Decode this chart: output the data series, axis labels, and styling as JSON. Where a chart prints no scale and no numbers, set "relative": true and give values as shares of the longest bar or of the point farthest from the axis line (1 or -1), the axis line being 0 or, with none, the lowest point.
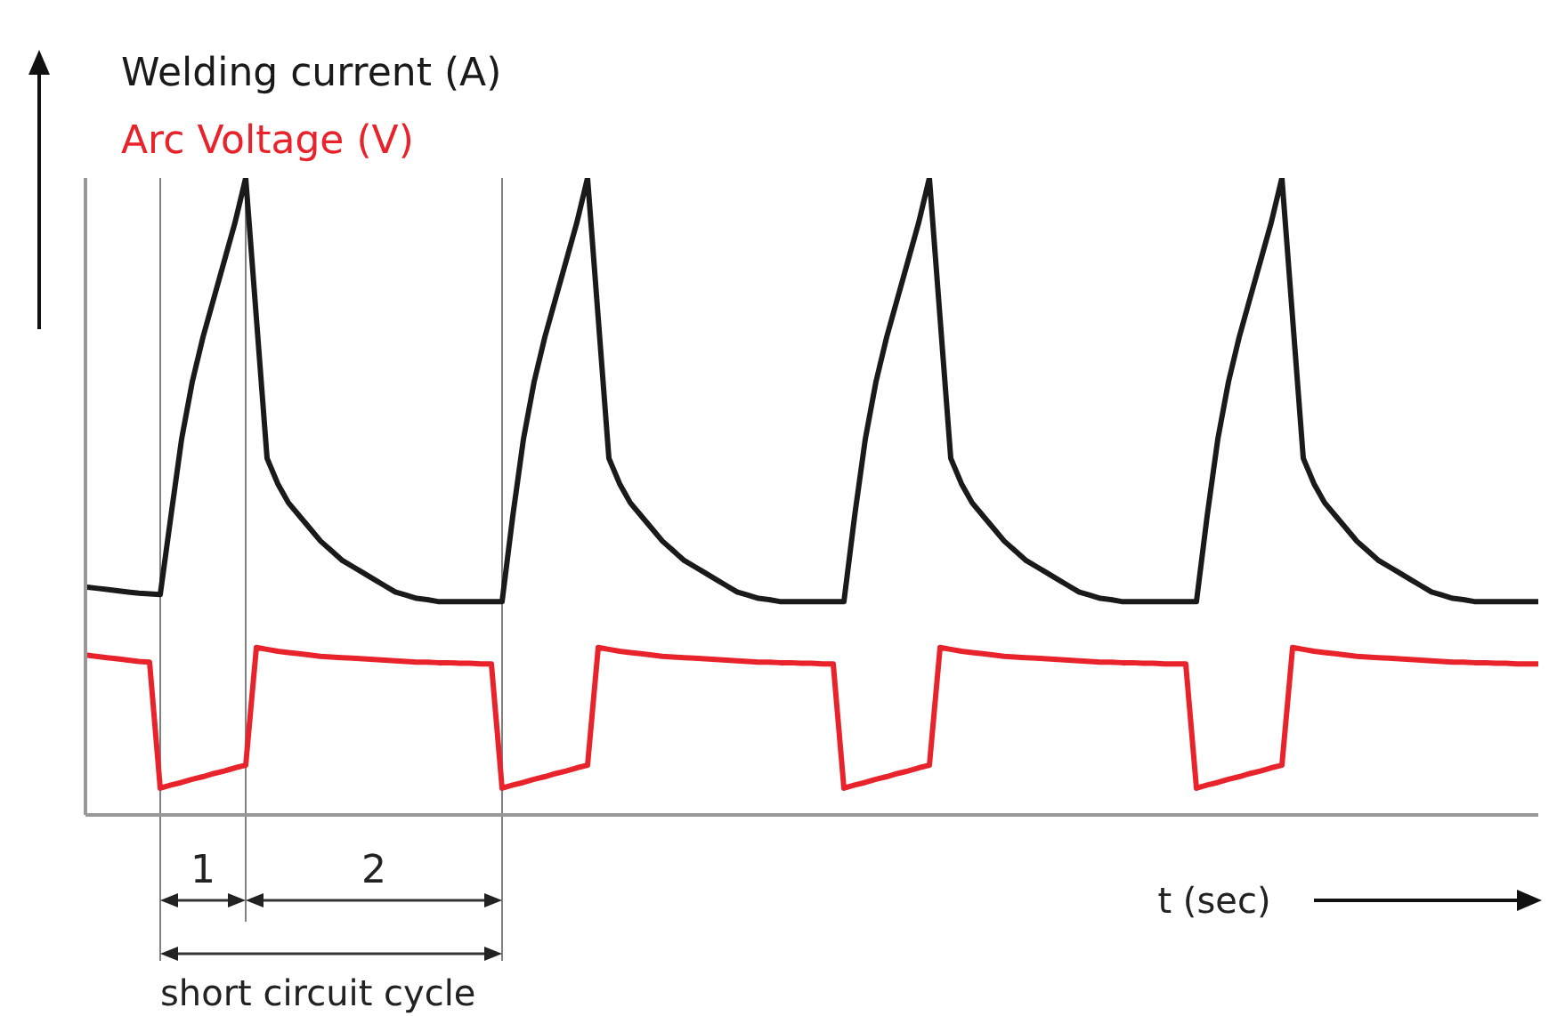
{
  "chart_data": {
    "type": "line",
    "relative": true,
    "xlabel": "t (sec)",
    "legend": "top left",
    "marker": "none",
    "line_style": "solid",
    "categories": [
      null,
      null,
      null,
      null,
      null,
      null,
      null,
      null,
      null,
      null,
      null,
      null,
      null,
      null,
      null,
      null,
      null,
      null,
      null,
      null,
      null,
      null,
      null,
      null,
      null,
      null,
      null,
      null,
      null,
      null,
      null,
      null,
      null,
      null,
      null,
      null,
      null,
      null,
      null,
      null,
      null,
      null,
      null,
      null,
      null,
      null,
      null,
      null,
      null,
      null,
      null,
      null,
      null,
      null,
      null,
      null,
      null,
      null,
      null,
      null,
      null,
      null,
      null,
      null,
      null,
      null,
      null,
      null,
      null,
      null,
      null,
      null,
      null,
      null,
      null,
      null,
      null,
      null,
      null,
      null,
      null,
      null,
      null,
      null,
      null,
      null,
      null,
      null,
      null,
      null,
      null,
      null,
      null,
      null,
      null,
      null,
      null,
      null,
      null,
      null,
      null,
      null,
      null,
      null,
      null,
      null,
      null,
      null,
      null,
      null,
      null,
      null,
      null,
      null,
      null,
      null,
      null,
      null,
      null,
      null,
      null,
      null,
      null,
      null,
      null,
      null,
      null,
      null,
      null,
      null,
      null,
      null,
      null,
      null,
      null,
      null,
      null
    ],
    "series": [
      {
        "name": "Welding current   (A)",
        "color": "#1a1a1a",
        "values": [
          0.358,
          0.356,
          0.354,
          0.352,
          0.35,
          0.348,
          0.347,
          0.346,
          0.469,
          0.59,
          0.68,
          0.75,
          0.81,
          0.87,
          0.93,
          1,
          0.78,
          0.56,
          0.52,
          0.49,
          0.47,
          0.45,
          0.43,
          0.415,
          0.4,
          0.39,
          0.38,
          0.37,
          0.36,
          0.35,
          0.345,
          0.34,
          0.338,
          0.335,
          0.335,
          0.335,
          0.335,
          0.335,
          0.335,
          0.335,
          0.469,
          0.59,
          0.68,
          0.75,
          0.81,
          0.87,
          0.93,
          1,
          0.78,
          0.56,
          0.52,
          0.49,
          0.47,
          0.45,
          0.43,
          0.415,
          0.4,
          0.39,
          0.38,
          0.37,
          0.36,
          0.35,
          0.345,
          0.34,
          0.338,
          0.335,
          0.335,
          0.335,
          0.335,
          0.335,
          0.335,
          0.335,
          0.469,
          0.59,
          0.68,
          0.75,
          0.81,
          0.87,
          0.93,
          1,
          0.78,
          0.56,
          0.52,
          0.49,
          0.47,
          0.45,
          0.43,
          0.415,
          0.4,
          0.39,
          0.38,
          0.37,
          0.36,
          0.35,
          0.345,
          0.34,
          0.338,
          0.335,
          0.335,
          0.335,
          0.335,
          0.335,
          0.335,
          0.335,
          0.335,
          0.469,
          0.59,
          0.68,
          0.75,
          0.81,
          0.87,
          0.93,
          1,
          0.78,
          0.56,
          0.52,
          0.49,
          0.47,
          0.45,
          0.43,
          0.415,
          0.4,
          0.39,
          0.38,
          0.37,
          0.36,
          0.35,
          0.345,
          0.34,
          0.338,
          0.335,
          0.335,
          0.335,
          0.335,
          0.335,
          0.335,
          0.335
        ]
      },
      {
        "name": "Arc Voltage (V)",
        "color": "#e8232b",
        "values": [
          0.251,
          0.249,
          0.247,
          0.245,
          0.243,
          0.241,
          0.24,
          0.042,
          0.047,
          0.051,
          0.056,
          0.06,
          0.065,
          0.069,
          0.074,
          0.078,
          0.263,
          0.26,
          0.257,
          0.255,
          0.253,
          0.251,
          0.249,
          0.248,
          0.247,
          0.246,
          0.245,
          0.244,
          0.243,
          0.242,
          0.241,
          0.24,
          0.24,
          0.239,
          0.239,
          0.238,
          0.238,
          0.237,
          0.237,
          0.042,
          0.047,
          0.051,
          0.056,
          0.06,
          0.065,
          0.069,
          0.074,
          0.078,
          0.263,
          0.26,
          0.257,
          0.255,
          0.253,
          0.251,
          0.249,
          0.248,
          0.247,
          0.246,
          0.245,
          0.244,
          0.243,
          0.242,
          0.241,
          0.24,
          0.24,
          0.239,
          0.239,
          0.238,
          0.238,
          0.237,
          0.237,
          0.042,
          0.047,
          0.051,
          0.056,
          0.06,
          0.065,
          0.069,
          0.074,
          0.078,
          0.263,
          0.26,
          0.257,
          0.255,
          0.253,
          0.251,
          0.249,
          0.248,
          0.247,
          0.246,
          0.245,
          0.244,
          0.243,
          0.242,
          0.241,
          0.24,
          0.24,
          0.239,
          0.239,
          0.238,
          0.238,
          0.237,
          0.237,
          0.237,
          0.042,
          0.047,
          0.051,
          0.056,
          0.06,
          0.065,
          0.069,
          0.074,
          0.078,
          0.263,
          0.26,
          0.257,
          0.255,
          0.253,
          0.251,
          0.249,
          0.248,
          0.247,
          0.246,
          0.245,
          0.244,
          0.243,
          0.242,
          0.241,
          0.24,
          0.24,
          0.239,
          0.239,
          0.238,
          0.238,
          0.237,
          0.237,
          0.237
        ]
      }
    ],
    "annotations": [
      "1",
      "2",
      "short circuit cycle"
    ]
  }
}
